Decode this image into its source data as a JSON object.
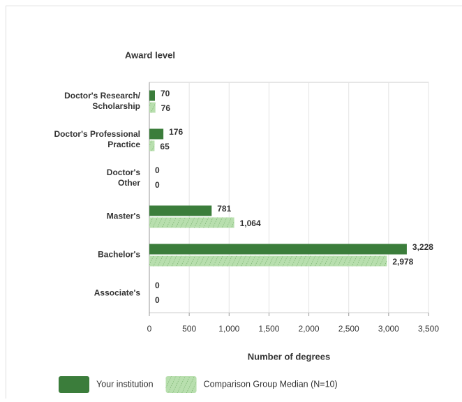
{
  "chart_data": {
    "type": "bar",
    "orientation": "horizontal",
    "title": "Award level",
    "x_label": "Number of degrees",
    "categories": [
      "Doctor's Research/\nScholarship",
      "Doctor's Professional\nPractice",
      "Doctor's\nOther",
      "Master's",
      "Bachelor's",
      "Associate's"
    ],
    "series": [
      {
        "name": "Your institution",
        "color": "#3b7d3b",
        "pattern": "solid",
        "values": [
          70,
          176,
          0,
          781,
          3228,
          0
        ],
        "value_labels": [
          "70",
          "176",
          "0",
          "781",
          "3,228",
          "0"
        ]
      },
      {
        "name": "Comparison Group Median (N=10)",
        "color": "#b8dfae",
        "pattern": "hatch",
        "values": [
          76,
          65,
          0,
          1064,
          2978,
          0
        ],
        "value_labels": [
          "76",
          "65",
          "0",
          "1,064",
          "2,978",
          "0"
        ]
      }
    ],
    "xlim": [
      0,
      3500
    ],
    "xticks": [
      0,
      500,
      {
        "value": 1000,
        "label": "1,000"
      },
      {
        "value": 1500,
        "label": "1,500"
      },
      {
        "value": 2000,
        "label": "2,000"
      },
      {
        "value": 2500,
        "label": "2,500"
      },
      {
        "value": 3000,
        "label": "3,000"
      },
      {
        "value": 3500,
        "label": "3,500"
      }
    ],
    "grid": true,
    "legend": "bottom"
  }
}
